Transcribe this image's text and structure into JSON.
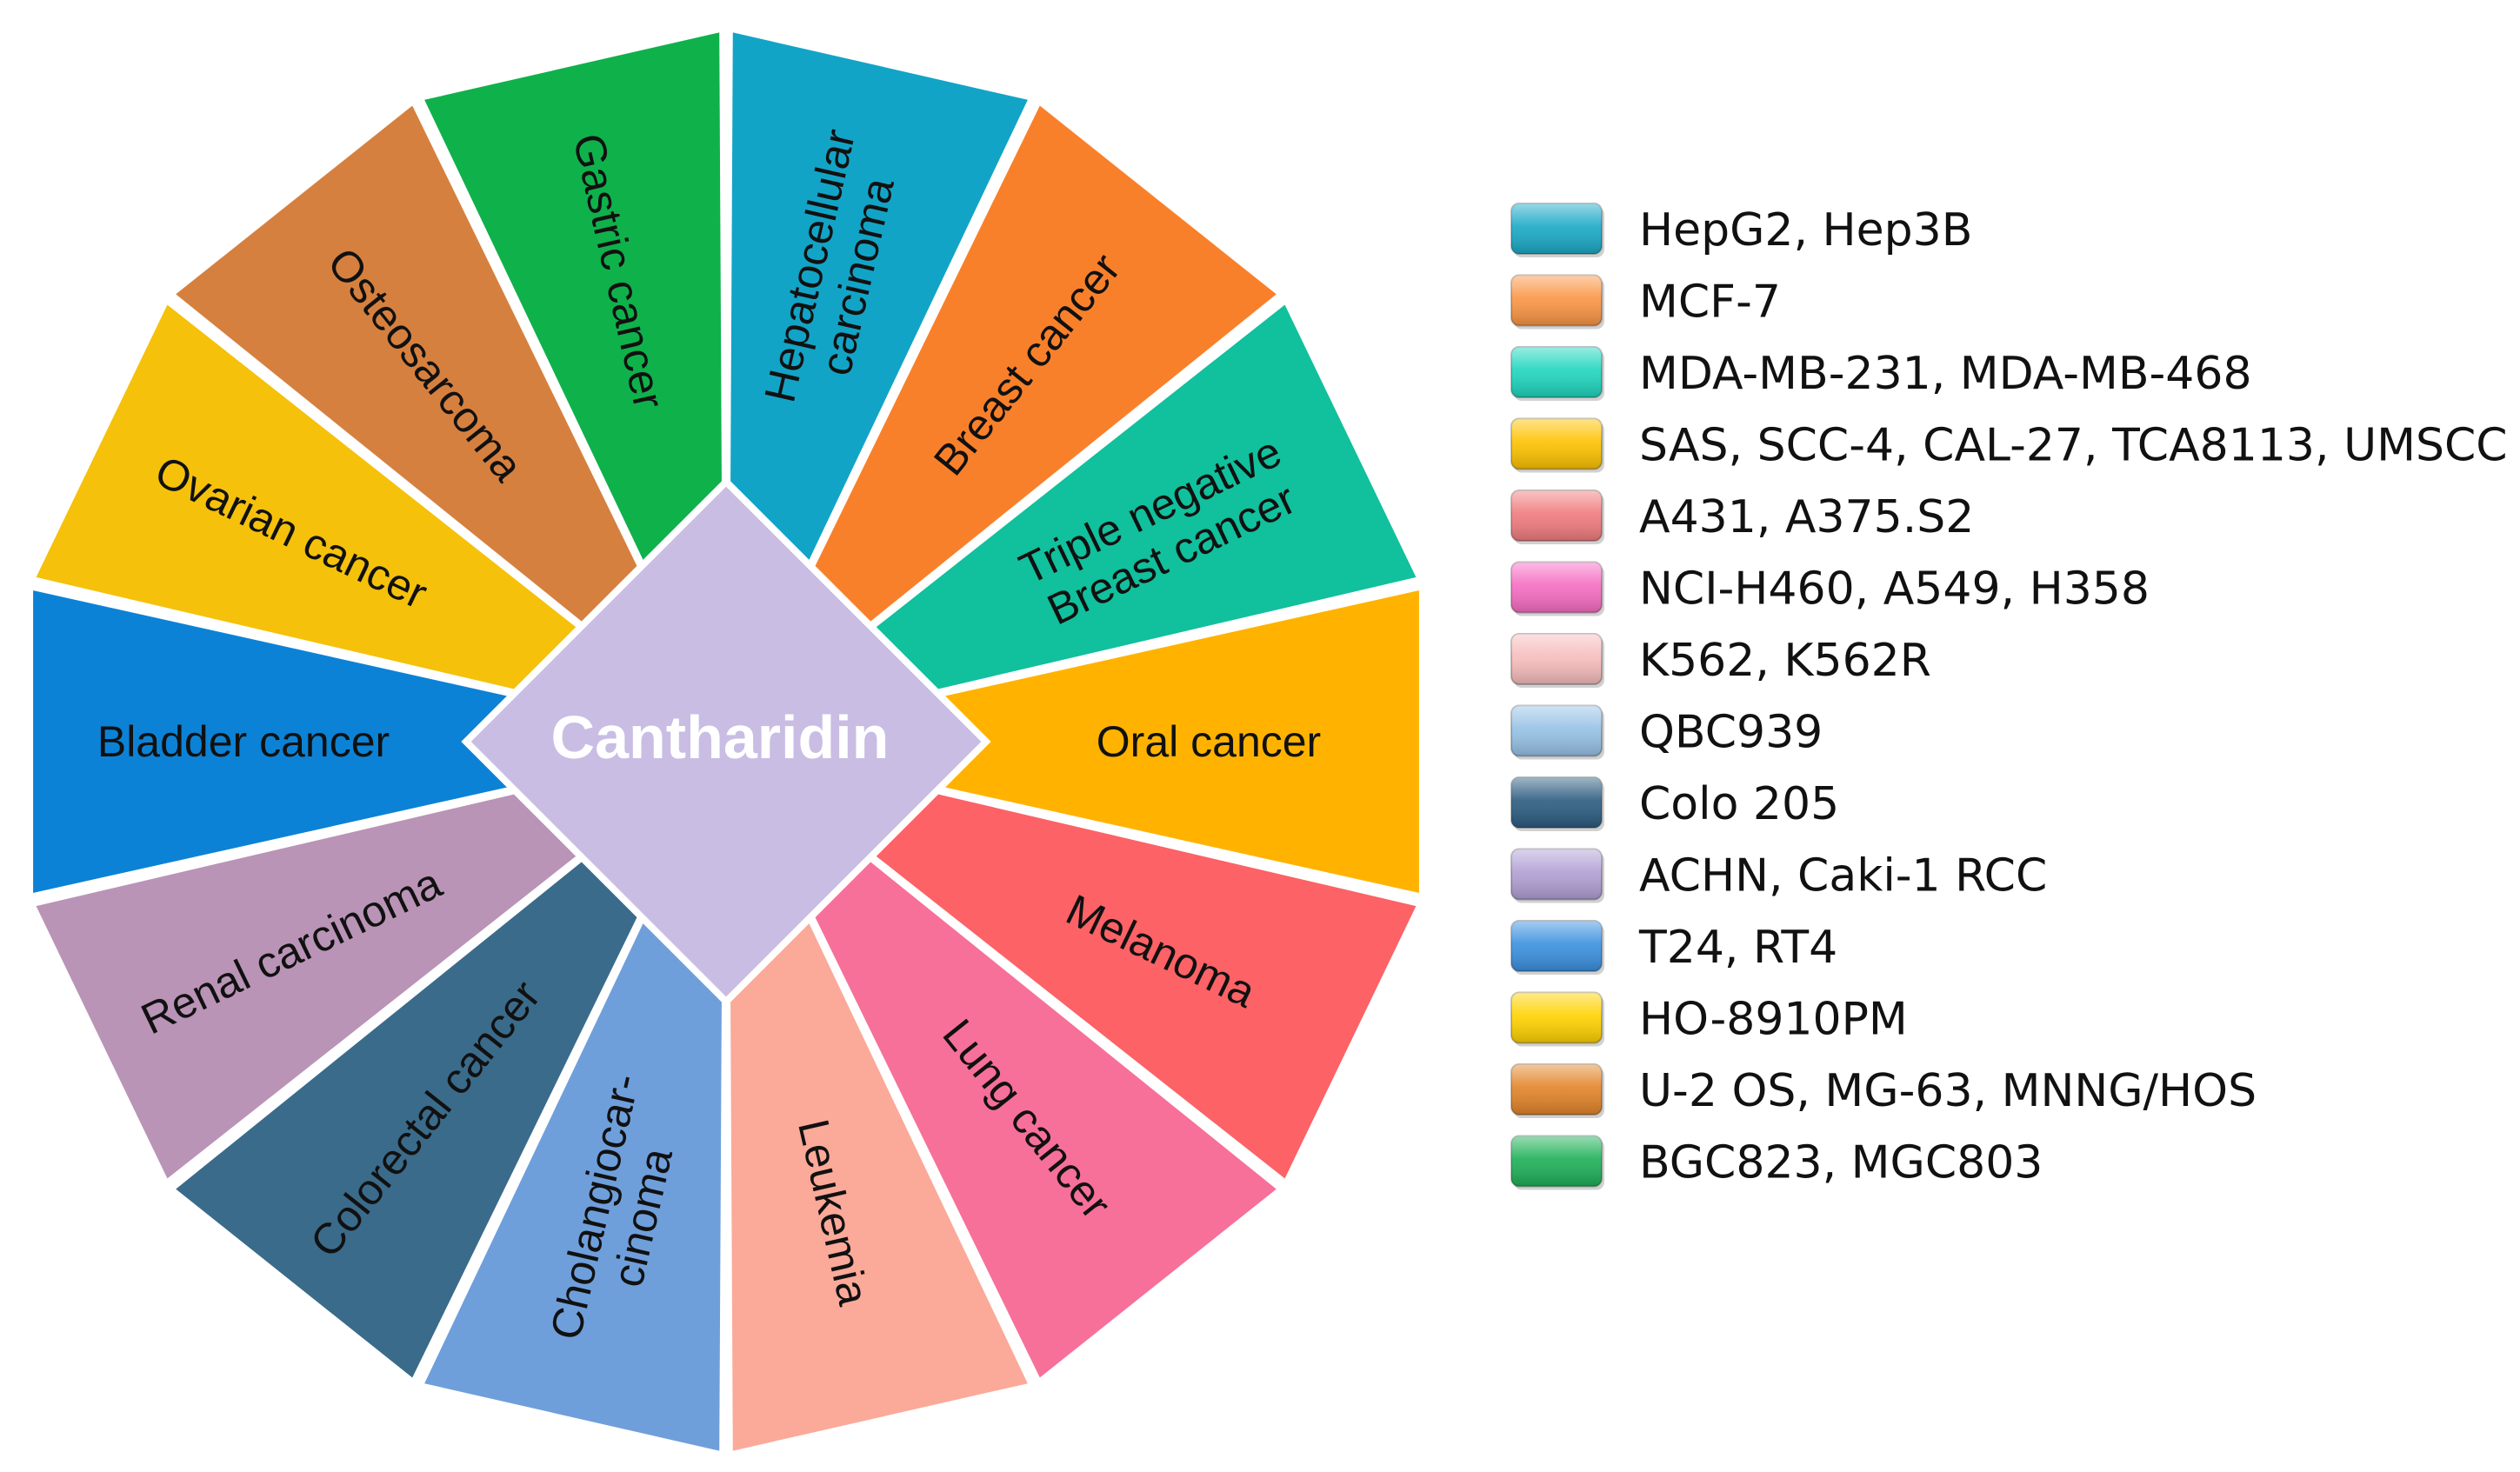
{
  "center": {
    "label": "Cantharidin",
    "color": "#c9bde4"
  },
  "segments": [
    {
      "id": "hepatocellular",
      "lines": [
        "Hepatocellular",
        "carcinoma"
      ],
      "color": "#12a4c6"
    },
    {
      "id": "breast",
      "lines": [
        "Breast cancer"
      ],
      "color": "#f9802a"
    },
    {
      "id": "triple-negative",
      "lines": [
        "Triple negative",
        "Breast cancer"
      ],
      "color": "#11c09c"
    },
    {
      "id": "oral",
      "lines": [
        "Oral cancer"
      ],
      "color": "#ffb300"
    },
    {
      "id": "melanoma",
      "lines": [
        "Melanoma"
      ],
      "color": "#fc6266"
    },
    {
      "id": "lung",
      "lines": [
        "Lung cancer"
      ],
      "color": "#f7709a"
    },
    {
      "id": "leukemia",
      "lines": [
        "Leukemia"
      ],
      "color": "#fba999"
    },
    {
      "id": "cholangiocarcinoma",
      "lines": [
        "Cholangiocar-",
        "cinoma"
      ],
      "color": "#6f9fdb"
    },
    {
      "id": "colorectal",
      "lines": [
        "Colorectal cancer"
      ],
      "color": "#3a6b8b"
    },
    {
      "id": "renal",
      "lines": [
        "Renal carcinoma"
      ],
      "color": "#b994b6"
    },
    {
      "id": "bladder",
      "lines": [
        "Bladder cancer"
      ],
      "color": "#0c82d6"
    },
    {
      "id": "ovarian",
      "lines": [
        "Ovarian cancer"
      ],
      "color": "#f5c10a"
    },
    {
      "id": "osteosarcoma",
      "lines": [
        "Osteosarcoma"
      ],
      "color": "#d6803f"
    },
    {
      "id": "gastric",
      "lines": [
        "Gastric cancer"
      ],
      "color": "#0fb14b"
    }
  ],
  "legend": [
    {
      "label": "HepG2, Hep3B",
      "color": "#1aa9c6"
    },
    {
      "label": "MCF-7",
      "color": "#fa9544"
    },
    {
      "label": "MDA-MB-231, MDA-MB-468",
      "color": "#1ed6be"
    },
    {
      "label": "SAS, SCC-4, CAL-27, TCA8113, UMSCC",
      "color": "#fdc200"
    },
    {
      "label": "A431, A375.S2",
      "color": "#f07b7e"
    },
    {
      "label": "NCI-H460, A549, H358",
      "color": "#f66cc2"
    },
    {
      "label": "K562, K562R",
      "color": "#f6bcbc"
    },
    {
      "label": "QBC939",
      "color": "#96c1e5"
    },
    {
      "label": "Colo 205",
      "color": "#2c5c80"
    },
    {
      "label": "ACHN, Caki-1 RCC",
      "color": "#b19fd4"
    },
    {
      "label": "T24, RT4",
      "color": "#3a90df"
    },
    {
      "label": "HO-8910PM",
      "color": "#ffd200"
    },
    {
      "label": "U-2 OS, MG-63, MNNG/HOS",
      "color": "#e28428"
    },
    {
      "label": "BGC823, MGC803",
      "color": "#1db057"
    }
  ]
}
